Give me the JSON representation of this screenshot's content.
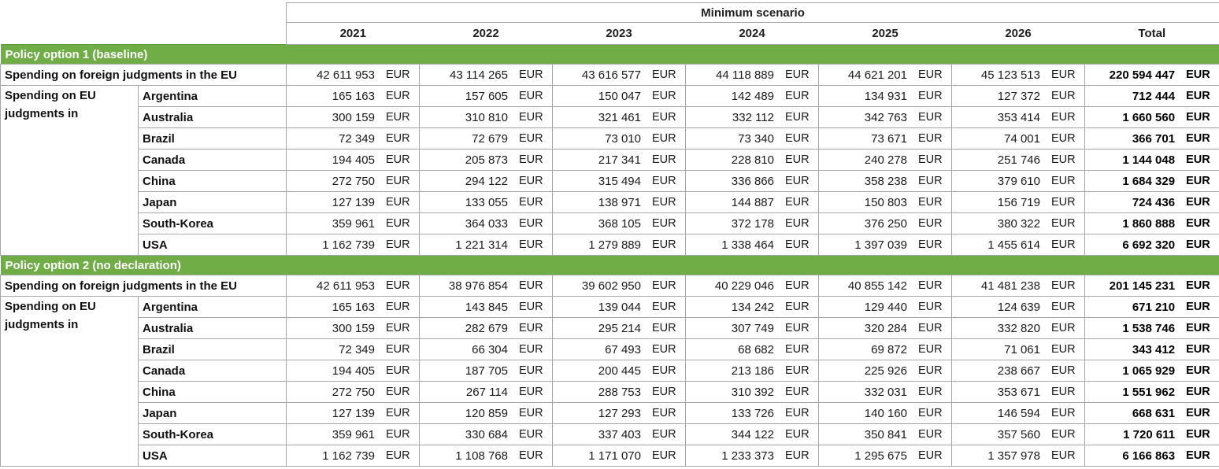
{
  "table": {
    "scenario_title": "Minimum scenario",
    "years": [
      "2021",
      "2022",
      "2023",
      "2024",
      "2025",
      "2026"
    ],
    "total_label": "Total",
    "currency": "EUR",
    "eu_row_label": "Spending on foreign judgments in the EU",
    "group_label": "Spending on EU judgments in",
    "colors": {
      "section_header_bg": "#70AD47",
      "section_header_text": "#FFFFFF",
      "grid_border": "#A6A6A6",
      "text": "#1F1F1F"
    },
    "sections": [
      {
        "title": "Policy option 1 (baseline)",
        "eu_row": {
          "values": [
            "42 611 953",
            "43 114 265",
            "43 616 577",
            "44 118 889",
            "44 621 201",
            "45 123 513"
          ],
          "total": "220 594 447"
        },
        "countries": [
          {
            "name": "Argentina",
            "values": [
              "165 163",
              "157 605",
              "150 047",
              "142 489",
              "134 931",
              "127 372"
            ],
            "total": "712 444"
          },
          {
            "name": "Australia",
            "values": [
              "300 159",
              "310 810",
              "321 461",
              "332 112",
              "342 763",
              "353 414"
            ],
            "total": "1 660 560"
          },
          {
            "name": "Brazil",
            "values": [
              "72 349",
              "72 679",
              "73 010",
              "73 340",
              "73 671",
              "74 001"
            ],
            "total": "366 701"
          },
          {
            "name": "Canada",
            "values": [
              "194 405",
              "205 873",
              "217 341",
              "228 810",
              "240 278",
              "251 746"
            ],
            "total": "1 144 048"
          },
          {
            "name": "China",
            "values": [
              "272 750",
              "294 122",
              "315 494",
              "336 866",
              "358 238",
              "379 610"
            ],
            "total": "1 684 329"
          },
          {
            "name": "Japan",
            "values": [
              "127 139",
              "133 055",
              "138 971",
              "144 887",
              "150 803",
              "156 719"
            ],
            "total": "724 436"
          },
          {
            "name": "South-Korea",
            "values": [
              "359 961",
              "364 033",
              "368 105",
              "372 178",
              "376 250",
              "380 322"
            ],
            "total": "1 860 888"
          },
          {
            "name": "USA",
            "values": [
              "1 162 739",
              "1 221 314",
              "1 279 889",
              "1 338 464",
              "1 397 039",
              "1 455 614"
            ],
            "total": "6 692 320"
          }
        ]
      },
      {
        "title": "Policy option 2 (no declaration)",
        "eu_row": {
          "values": [
            "42 611 953",
            "38 976 854",
            "39 602 950",
            "40 229 046",
            "40 855 142",
            "41 481 238"
          ],
          "total": "201 145 231"
        },
        "countries": [
          {
            "name": "Argentina",
            "values": [
              "165 163",
              "143 845",
              "139 044",
              "134 242",
              "129 440",
              "124 639"
            ],
            "total": "671 210"
          },
          {
            "name": "Australia",
            "values": [
              "300 159",
              "282 679",
              "295 214",
              "307 749",
              "320 284",
              "332 820"
            ],
            "total": "1 538 746"
          },
          {
            "name": "Brazil",
            "values": [
              "72 349",
              "66 304",
              "67 493",
              "68 682",
              "69 872",
              "71 061"
            ],
            "total": "343 412"
          },
          {
            "name": "Canada",
            "values": [
              "194 405",
              "187 705",
              "200 445",
              "213 186",
              "225 926",
              "238 667"
            ],
            "total": "1 065 929"
          },
          {
            "name": "China",
            "values": [
              "272 750",
              "267 114",
              "288 753",
              "310 392",
              "332 031",
              "353 671"
            ],
            "total": "1 551 962"
          },
          {
            "name": "Japan",
            "values": [
              "127 139",
              "120 859",
              "127 293",
              "133 726",
              "140 160",
              "146 594"
            ],
            "total": "668 631"
          },
          {
            "name": "South-Korea",
            "values": [
              "359 961",
              "330 684",
              "337 403",
              "344 122",
              "350 841",
              "357 560"
            ],
            "total": "1 720 611"
          },
          {
            "name": "USA",
            "values": [
              "1 162 739",
              "1 108 768",
              "1 171 070",
              "1 233 373",
              "1 295 675",
              "1 357 978"
            ],
            "total": "6 166 863"
          }
        ]
      }
    ]
  }
}
